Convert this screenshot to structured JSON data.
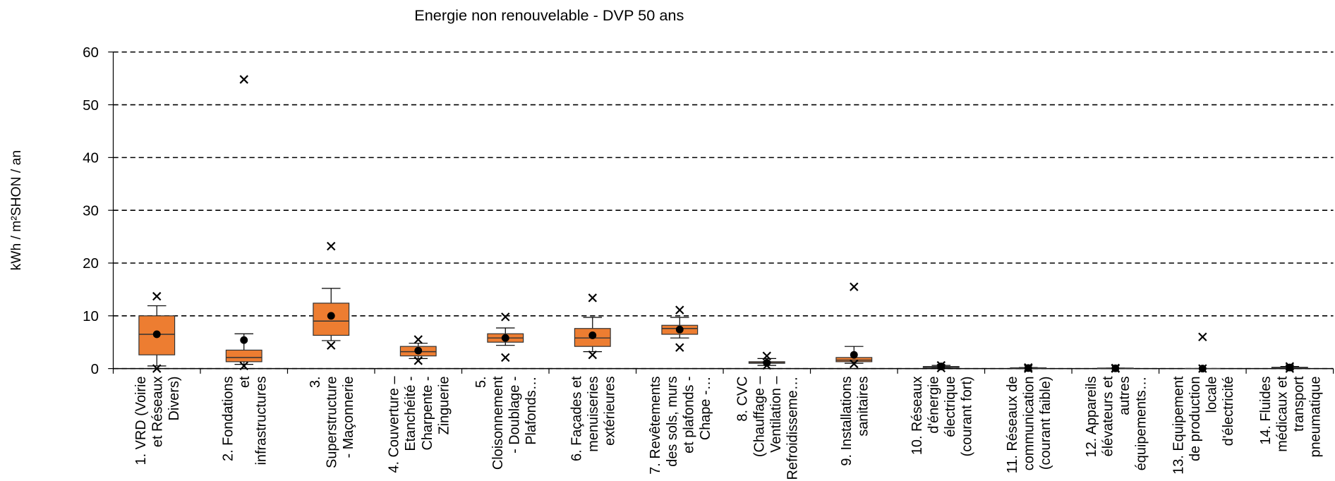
{
  "chart_data": {
    "type": "box",
    "title": "Energie non renouvelable - DVP 50 ans",
    "y_label": "kWh / m²SHON / an",
    "categories": [
      "1. VRD (Voirie\net Réseaux\nDivers)",
      "2. Fondations\net\ninfrastructures",
      "3.\nSuperstructure\n- Maçonnerie",
      "4. Couverture –\nEtanchéité -\nCharpente -\nZinguerie",
      "5.\nCloisonnement\n- Doublage -\nPlafonds…",
      "6. Façades et\nmenuiseries\nextérieures",
      "7. Revêtements\ndes sols, murs\net plafonds -\nChape -…",
      "8. CVC\n(Chauffage –\nVentilation –\nRefroidisseme…",
      "9. Installations\nsanitaires",
      "10. Réseaux\nd'énergie\nélectrique\n(courant fort)",
      "11. Réseaux de\ncommunication\n(courant faible)",
      "12. Appareils\nélévateurs et\nautres\néquipements…",
      "13. Equipement\nde production\nlocale\nd'électricité",
      "14. Fluides\nmédicaux et\ntransport\npneumatique"
    ],
    "whisker_low": [
      0.5,
      0.8,
      5.3,
      1.9,
      4.4,
      3.2,
      5.8,
      0.6,
      1.0,
      0.1,
      0,
      0,
      0,
      0
    ],
    "q1": [
      2.6,
      1.3,
      6.3,
      2.4,
      5.0,
      4.2,
      6.5,
      1.0,
      1.3,
      0.2,
      0.05,
      0,
      0,
      0.1
    ],
    "median": [
      6.5,
      2.1,
      9.0,
      3.2,
      5.8,
      5.8,
      7.6,
      1.1,
      1.6,
      0.3,
      0.1,
      0.05,
      0,
      0.15
    ],
    "q3": [
      10.0,
      3.5,
      12.4,
      4.2,
      6.6,
      7.6,
      8.2,
      1.3,
      2.1,
      0.4,
      0.15,
      0.1,
      0,
      0.25
    ],
    "whisker_high": [
      11.9,
      6.6,
      15.2,
      4.8,
      7.7,
      9.7,
      9.7,
      1.9,
      4.2,
      0.6,
      0.2,
      0.1,
      0,
      0.4
    ],
    "mean": [
      6.5,
      5.4,
      10.0,
      3.4,
      5.8,
      6.3,
      7.4,
      1.1,
      2.6,
      0.4,
      0.1,
      0.05,
      0,
      0.2
    ],
    "min": [
      0,
      0.5,
      4.4,
      1.5,
      2.1,
      2.6,
      4.0,
      0.6,
      0.9,
      0.1,
      0,
      0,
      0,
      0
    ],
    "max": [
      13.7,
      54.8,
      23.2,
      5.5,
      9.8,
      13.4,
      11.1,
      2.4,
      15.5,
      0.6,
      0.2,
      0.1,
      6.0,
      0.4
    ],
    "color": "#ED7D31",
    "ylim": [
      0,
      60
    ],
    "yticks": [
      0,
      10,
      20,
      30,
      40,
      50,
      60
    ],
    "grid": true
  }
}
